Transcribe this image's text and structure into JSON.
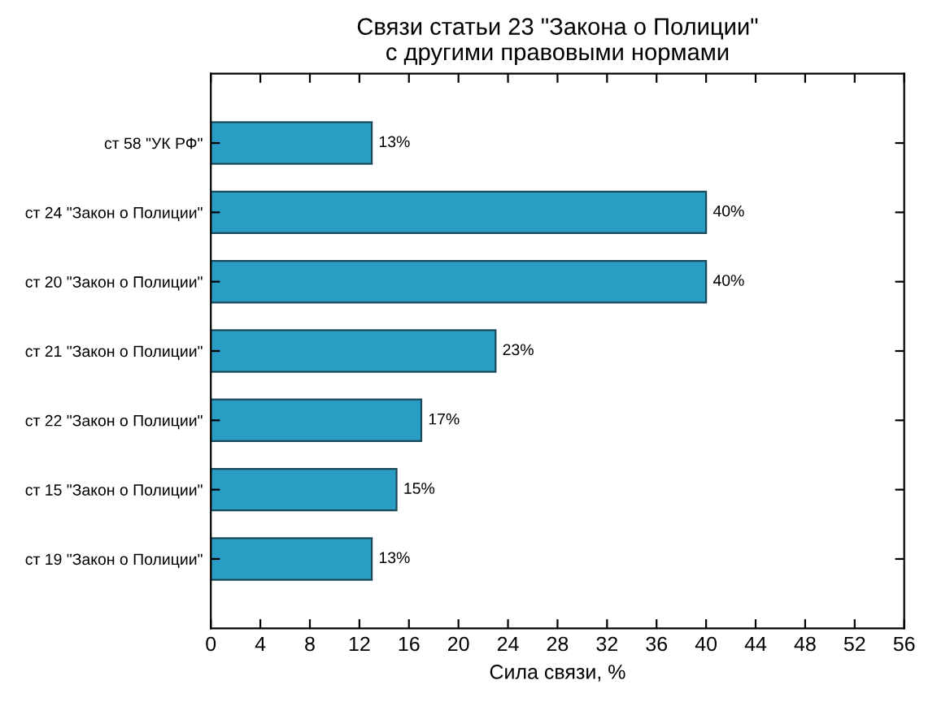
{
  "chart_data": {
    "type": "bar",
    "orientation": "horizontal",
    "title": "Связи статьи 23 \"Закона о Полиции\"\nс другими правовыми нормами",
    "xlabel": "Сила связи, %",
    "categories": [
      "ст 58 \"УК РФ\"",
      "ст 24 \"Закон о Полиции\"",
      "ст 20 \"Закон о Полиции\"",
      "ст 21 \"Закон о Полиции\"",
      "ст 22 \"Закон о Полиции\"",
      "ст 15 \"Закон о Полиции\"",
      "ст 19 \"Закон о Полиции\""
    ],
    "values": [
      13,
      40,
      40,
      23,
      17,
      15,
      13
    ],
    "value_labels": [
      "13%",
      "40%",
      "40%",
      "23%",
      "17%",
      "15%",
      "13%"
    ],
    "color": "#2a9dc4",
    "xlim": [
      0,
      56
    ],
    "xticks": [
      0,
      4,
      8,
      12,
      16,
      20,
      24,
      28,
      32,
      36,
      40,
      44,
      48,
      52,
      56
    ],
    "grid": false,
    "legend": false
  }
}
